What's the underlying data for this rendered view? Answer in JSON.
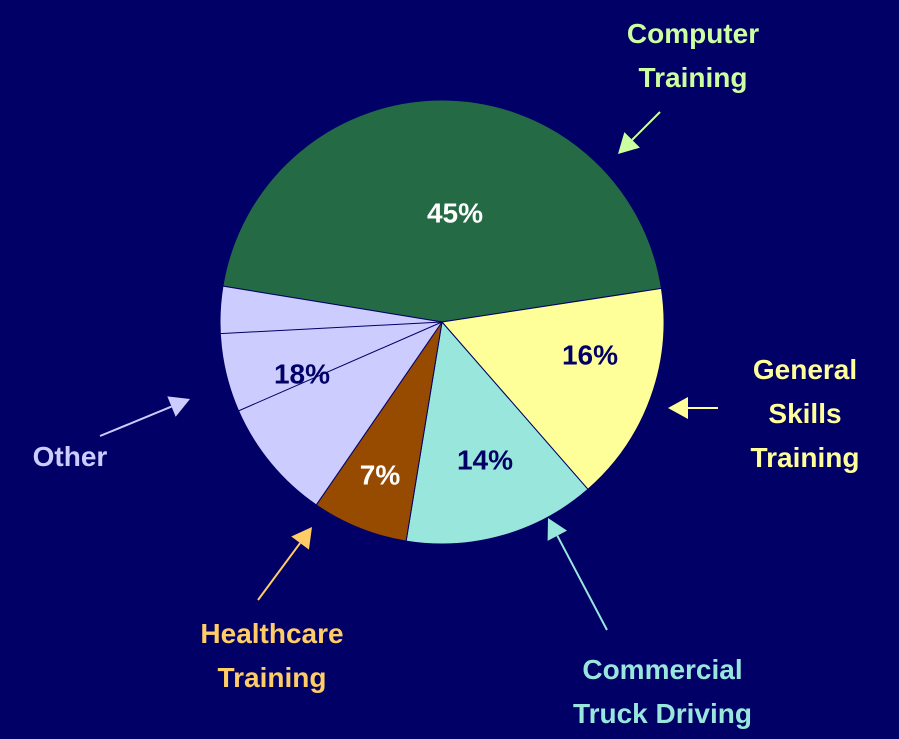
{
  "chart_data": {
    "type": "pie",
    "categories": [
      "Computer Training",
      "General Skills Training",
      "Commercial Truck Driving",
      "Healthcare Training",
      "Other"
    ],
    "values": [
      45,
      16,
      14,
      7,
      18
    ],
    "value_labels": [
      "45%",
      "16%",
      "14%",
      "7%",
      "18%"
    ],
    "colors": [
      "#246b45",
      "#ffff99",
      "#99e6dd",
      "#964b00",
      "#ccccff"
    ]
  }
}
